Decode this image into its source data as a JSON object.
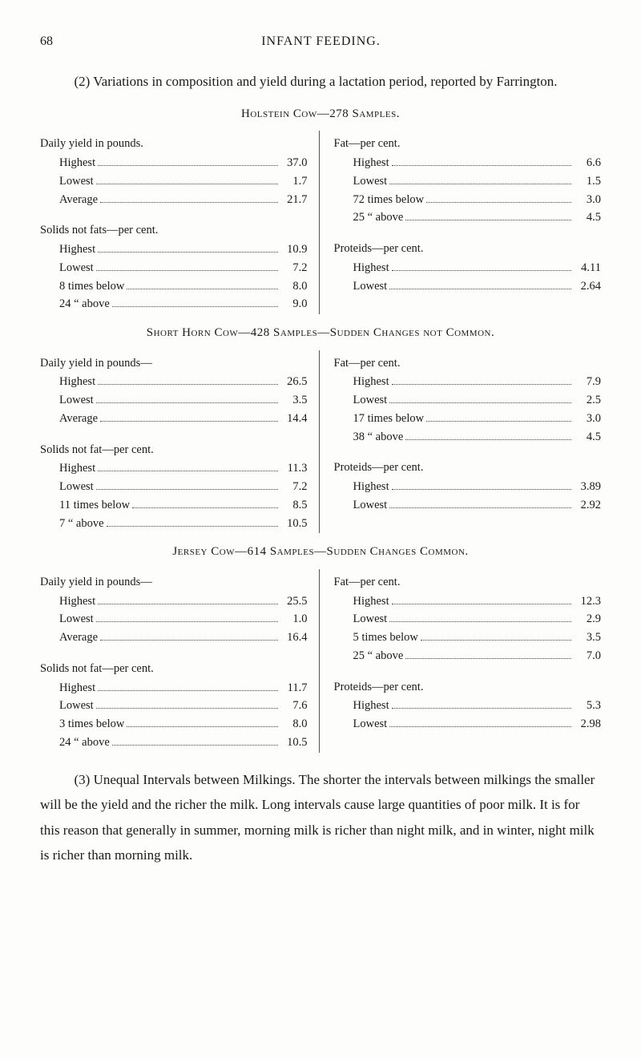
{
  "page_number": "68",
  "page_title": "INFANT FEEDING.",
  "intro": "(2) Variations in composition and yield during a lactation period, reported by Farrington.",
  "tables": [
    {
      "title": "Holstein Cow—278 Samples.",
      "left": [
        {
          "heading": "Daily yield in pounds.",
          "rows": [
            {
              "label": "Highest",
              "value": "37.0"
            },
            {
              "label": "Lowest",
              "value": "1.7"
            },
            {
              "label": "Average",
              "value": "21.7"
            }
          ]
        },
        {
          "heading": "Solids not fats—per cent.",
          "rows": [
            {
              "label": "Highest",
              "value": "10.9"
            },
            {
              "label": "Lowest",
              "value": "7.2"
            },
            {
              "label": "8 times below",
              "value": "8.0"
            },
            {
              "label": "24  “  above",
              "value": "9.0"
            }
          ]
        }
      ],
      "right": [
        {
          "heading": "Fat—per cent.",
          "rows": [
            {
              "label": "Highest",
              "value": "6.6"
            },
            {
              "label": "Lowest",
              "value": "1.5"
            },
            {
              "label": "72 times below",
              "value": "3.0"
            },
            {
              "label": "25  “  above",
              "value": "4.5"
            }
          ]
        },
        {
          "heading": "Proteids—per cent.",
          "rows": [
            {
              "label": "Highest",
              "value": "4.11"
            },
            {
              "label": "Lowest",
              "value": "2.64"
            }
          ]
        }
      ]
    },
    {
      "title": "Short Horn Cow—428 Samples—Sudden Changes not Common.",
      "left": [
        {
          "heading": "Daily yield in pounds—",
          "rows": [
            {
              "label": "Highest",
              "value": "26.5"
            },
            {
              "label": "Lowest",
              "value": "3.5"
            },
            {
              "label": "Average",
              "value": "14.4"
            }
          ]
        },
        {
          "heading": "Solids not fat—per cent.",
          "rows": [
            {
              "label": "Highest",
              "value": "11.3"
            },
            {
              "label": "Lowest",
              "value": "7.2"
            },
            {
              "label": "11 times below",
              "value": "8.5"
            },
            {
              "label": "7  “  above",
              "value": "10.5"
            }
          ]
        }
      ],
      "right": [
        {
          "heading": "Fat—per cent.",
          "rows": [
            {
              "label": "Highest",
              "value": "7.9"
            },
            {
              "label": "Lowest",
              "value": "2.5"
            },
            {
              "label": "17 times below",
              "value": "3.0"
            },
            {
              "label": "38  “  above",
              "value": "4.5"
            }
          ]
        },
        {
          "heading": "Proteids—per cent.",
          "rows": [
            {
              "label": "Highest",
              "value": "3.89"
            },
            {
              "label": "Lowest",
              "value": "2.92"
            }
          ]
        }
      ]
    },
    {
      "title": "Jersey Cow—614 Samples—Sudden Changes Common.",
      "left": [
        {
          "heading": "Daily yield in pounds—",
          "rows": [
            {
              "label": "Highest",
              "value": "25.5"
            },
            {
              "label": "Lowest",
              "value": "1.0"
            },
            {
              "label": "Average",
              "value": "16.4"
            }
          ]
        },
        {
          "heading": "Solids not fat—per cent.",
          "rows": [
            {
              "label": "Highest",
              "value": "11.7"
            },
            {
              "label": "Lowest",
              "value": "7.6"
            },
            {
              "label": "3 times below",
              "value": "8.0"
            },
            {
              "label": "24  “  above",
              "value": "10.5"
            }
          ]
        }
      ],
      "right": [
        {
          "heading": "Fat—per cent.",
          "rows": [
            {
              "label": "Highest",
              "value": "12.3"
            },
            {
              "label": "Lowest",
              "value": "2.9"
            },
            {
              "label": "5 times below",
              "value": "3.5"
            },
            {
              "label": "25  “  above",
              "value": "7.0"
            }
          ]
        },
        {
          "heading": "Proteids—per cent.",
          "rows": [
            {
              "label": "Highest",
              "value": "5.3"
            },
            {
              "label": "Lowest",
              "value": "2.98"
            }
          ]
        }
      ]
    }
  ],
  "conclusion": "(3) Unequal Intervals between Milkings.  The shorter the intervals between milkings the smaller will be the yield and the richer the milk.  Long intervals cause large quantities of poor milk.  It is for this reason that generally in summer, morning milk is richer than night milk, and in winter, night milk is richer than morning milk."
}
